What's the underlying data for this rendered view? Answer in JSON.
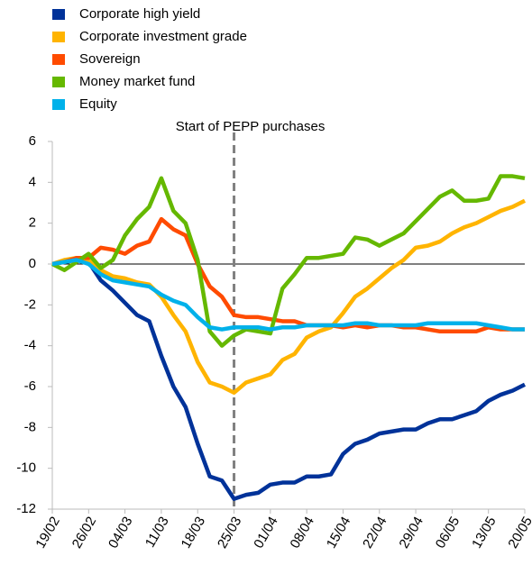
{
  "chart_data": {
    "type": "line",
    "categories": [
      "19/02",
      null,
      null,
      "26/02",
      null,
      null,
      "04/03",
      null,
      null,
      "11/03",
      null,
      null,
      "18/03",
      null,
      null,
      "25/03",
      null,
      null,
      "01/04",
      null,
      null,
      "08/04",
      null,
      null,
      "15/04",
      null,
      null,
      "22/04",
      null,
      null,
      "29/04",
      null,
      null,
      "06/05",
      null,
      null,
      "13/05",
      null,
      null,
      "20/05"
    ],
    "series": [
      {
        "name": "Corporate high yield",
        "color": "#003299",
        "values": [
          0,
          0.1,
          0.2,
          0.1,
          -0.8,
          -1.3,
          -1.9,
          -2.5,
          -2.8,
          -4.5,
          -6.0,
          -7.0,
          -8.8,
          -10.4,
          -10.6,
          -11.5,
          -11.3,
          -11.2,
          -10.8,
          -10.7,
          -10.7,
          -10.4,
          -10.4,
          -10.3,
          -9.3,
          -8.8,
          -8.6,
          -8.3,
          -8.2,
          -8.1,
          -8.1,
          -7.8,
          -7.6,
          -7.6,
          -7.4,
          -7.2,
          -6.7,
          -6.4,
          -6.2,
          -5.9
        ]
      },
      {
        "name": "Corporate investment grade",
        "color": "#ffb400",
        "values": [
          0,
          0.2,
          0.3,
          0.2,
          -0.3,
          -0.6,
          -0.7,
          -0.9,
          -1.0,
          -1.6,
          -2.5,
          -3.3,
          -4.8,
          -5.8,
          -6.0,
          -6.3,
          -5.8,
          -5.6,
          -5.4,
          -4.7,
          -4.4,
          -3.6,
          -3.3,
          -3.1,
          -2.4,
          -1.6,
          -1.2,
          -0.7,
          -0.2,
          0.2,
          0.8,
          0.9,
          1.1,
          1.5,
          1.8,
          2.0,
          2.3,
          2.6,
          2.8,
          3.1
        ]
      },
      {
        "name": "Sovereign",
        "color": "#ff4b00",
        "values": [
          0,
          0.1,
          0.3,
          0.3,
          0.8,
          0.7,
          0.5,
          0.9,
          1.1,
          2.2,
          1.7,
          1.4,
          0,
          -1.1,
          -1.6,
          -2.5,
          -2.6,
          -2.6,
          -2.7,
          -2.8,
          -2.8,
          -3.0,
          -3.0,
          -3.0,
          -3.1,
          -3.0,
          -3.1,
          -3.0,
          -3.0,
          -3.1,
          -3.1,
          -3.2,
          -3.3,
          -3.3,
          -3.3,
          -3.3,
          -3.1,
          -3.2,
          -3.2,
          -3.2
        ]
      },
      {
        "name": "Money market fund",
        "color": "#65b800",
        "values": [
          0,
          -0.3,
          0.1,
          0.5,
          -0.2,
          0.2,
          1.4,
          2.2,
          2.8,
          4.2,
          2.6,
          2.0,
          0.2,
          -3.3,
          -4.0,
          -3.5,
          -3.2,
          -3.3,
          -3.4,
          -1.2,
          -0.5,
          0.3,
          0.3,
          0.4,
          0.5,
          1.3,
          1.2,
          0.9,
          1.2,
          1.5,
          2.1,
          2.7,
          3.3,
          3.6,
          3.1,
          3.1,
          3.2,
          4.3,
          4.3,
          4.2
        ]
      },
      {
        "name": "Equity",
        "color": "#00b1ea",
        "values": [
          0,
          0.1,
          0.2,
          0,
          -0.5,
          -0.8,
          -0.9,
          -1.0,
          -1.1,
          -1.5,
          -1.8,
          -2.0,
          -2.6,
          -3.1,
          -3.2,
          -3.1,
          -3.1,
          -3.1,
          -3.2,
          -3.1,
          -3.1,
          -3.0,
          -3.0,
          -3.0,
          -3.0,
          -2.9,
          -2.9,
          -3.0,
          -3.0,
          -3.0,
          -3.0,
          -2.9,
          -2.9,
          -2.9,
          -2.9,
          -2.9,
          -3.0,
          -3.1,
          -3.2,
          -3.2
        ]
      }
    ],
    "annotation": {
      "text": "Start of PEPP purchases",
      "x": "25/03"
    },
    "ylim": [
      -12,
      6
    ],
    "yticks": [
      -12,
      -10,
      -8,
      -6,
      -4,
      -2,
      0,
      2,
      4,
      6
    ]
  }
}
